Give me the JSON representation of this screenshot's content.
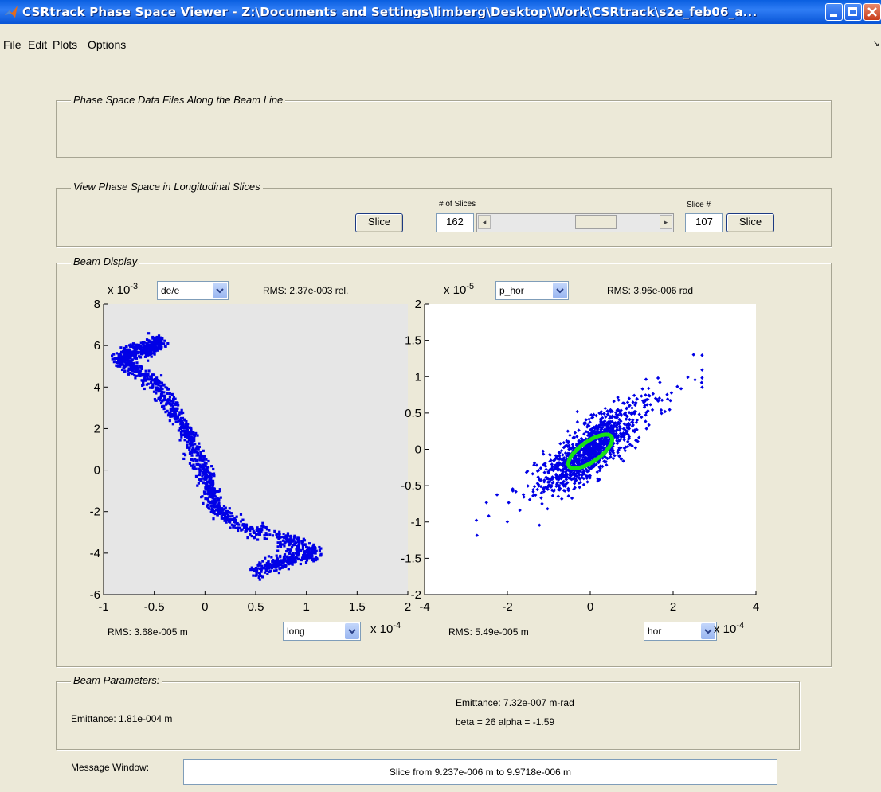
{
  "window": {
    "title": "CSRtrack Phase Space Viewer - Z:\\Documents and Settings\\limberg\\Desktop\\Work\\CSRtrack\\s2e_feb06_a...",
    "colors": {
      "titlebar": "#0a5fe0",
      "background": "#ece9d8",
      "points": "#0000e6",
      "ellipse": "#16e016"
    }
  },
  "menu": {
    "items": [
      "File",
      "Edit",
      "Plots",
      "Options"
    ]
  },
  "panels": {
    "data_files": {
      "label": "Phase Space Data Files Along the Beam Line"
    },
    "slices": {
      "label": "View Phase Space in Longitudinal Slices",
      "slice_button_left": "Slice",
      "num_slices_label": "# of Slices",
      "num_slices_value": "162",
      "slider_fraction": 0.66,
      "slice_num_label": "Slice #",
      "slice_num_value": "107",
      "slice_button_right": "Slice"
    },
    "beam_display": {
      "label": "Beam Display"
    },
    "beam_params": {
      "label": "Beam Parameters:",
      "left_emittance": "Emittance: 1.81e-004 m",
      "right_emittance": "Emittance: 7.32e-007 m-rad",
      "right_twiss": "beta = 26 alpha = -1.59"
    }
  },
  "message": {
    "label": "Message Window:",
    "text": "Slice from 9.237e-006 m to 9.9718e-006 m"
  },
  "left_plot": {
    "y_select": "de/e",
    "x_select": "long",
    "rms_y": "RMS: 2.37e-003 rel.",
    "rms_x": "RMS: 3.68e-005 m",
    "y_exp_base": "x 10",
    "y_exp": "-3",
    "x_exp_base": "x 10",
    "x_exp": "-4"
  },
  "right_plot": {
    "y_select": "p_hor",
    "x_select": "hor",
    "rms_y": "RMS: 3.96e-006 rad",
    "rms_x": "RMS: 5.49e-005 m",
    "y_exp_base": "x 10",
    "y_exp": "-5",
    "x_exp_base": "x 10",
    "x_exp": "-4"
  },
  "chart_data": [
    {
      "type": "scatter",
      "title": "",
      "xlabel": "long",
      "ylabel": "de/e",
      "x_scale": "x 10^-4",
      "y_scale": "x 10^-3",
      "xlim": [
        -1,
        2
      ],
      "ylim": [
        -6,
        8
      ],
      "xticks": [
        -1,
        -0.5,
        0,
        0.5,
        1,
        1.5,
        2
      ],
      "yticks": [
        -6,
        -4,
        -2,
        0,
        2,
        4,
        6,
        8
      ],
      "background": "#e6e6e6",
      "series": [
        {
          "color": "#0000e6",
          "path": [
            [
              -0.45,
              6.2
            ],
            [
              -0.5,
              6.0
            ],
            [
              -0.6,
              5.8
            ],
            [
              -0.75,
              5.6
            ],
            [
              -0.85,
              5.3
            ],
            [
              -0.7,
              4.9
            ],
            [
              -0.5,
              4.2
            ],
            [
              -0.35,
              3.2
            ],
            [
              -0.2,
              2.0
            ],
            [
              -0.1,
              0.9
            ],
            [
              0.0,
              -0.1
            ],
            [
              0.05,
              -1.0
            ],
            [
              0.1,
              -1.9
            ],
            [
              0.4,
              -2.8
            ],
            [
              0.8,
              -3.4
            ],
            [
              1.1,
              -3.9
            ],
            [
              0.9,
              -4.2
            ],
            [
              0.7,
              -4.5
            ],
            [
              0.5,
              -4.9
            ]
          ]
        }
      ]
    },
    {
      "type": "scatter",
      "title": "",
      "xlabel": "hor",
      "ylabel": "p_hor",
      "x_scale": "x 10^-4",
      "y_scale": "x 10^-5",
      "xlim": [
        -4,
        4
      ],
      "ylim": [
        -2,
        2
      ],
      "xticks": [
        -4,
        -2,
        0,
        2,
        4
      ],
      "yticks": [
        -2,
        -1.5,
        -1,
        -0.5,
        0,
        0.5,
        1,
        1.5,
        2
      ],
      "background": "#ffffff",
      "series": [
        {
          "color": "#0000e6",
          "center": [
            0.0,
            0.0
          ],
          "slope": 0.4,
          "extent_x": [
            -3.1,
            2.7
          ]
        },
        {
          "name": "ellipse",
          "color": "#16e016",
          "center": [
            0.0,
            -0.03
          ],
          "semi_major": 0.55,
          "semi_minor": 0.28
        }
      ]
    }
  ]
}
